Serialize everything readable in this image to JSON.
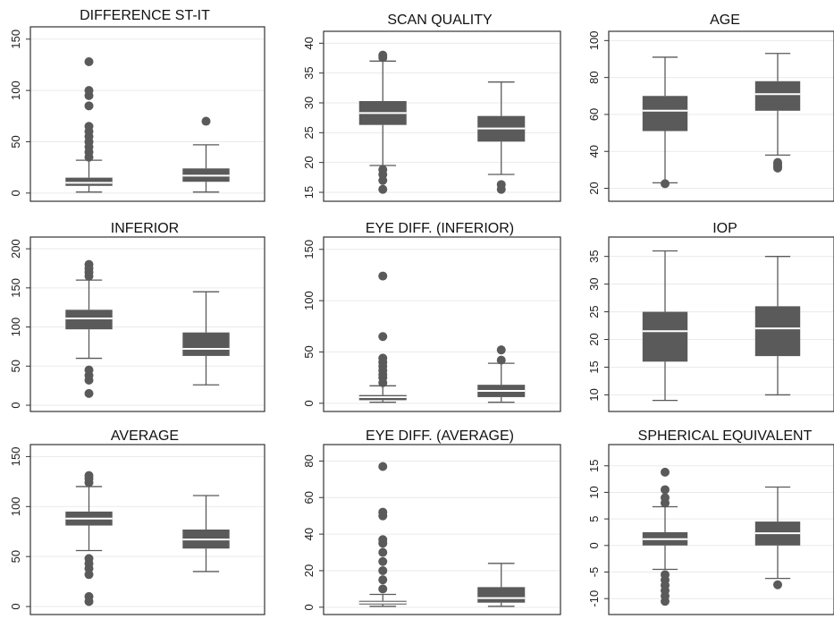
{
  "style": {
    "box_fill": "#5a5a5a",
    "median_line": "#ffffff",
    "whisker": "#5a5a5a",
    "outlier": "#5a5a5a",
    "frame": "#333333",
    "grid": "#eaeaea"
  },
  "chart_data": [
    {
      "type": "boxplot",
      "title": "DIFFERENCE ST-IT",
      "ylim": [
        -8,
        162
      ],
      "yticks": [
        0,
        50,
        100,
        150
      ],
      "ytick_labels": [
        "0",
        "50",
        "100",
        "150"
      ],
      "grid": true,
      "boxes": [
        {
          "whisker_low": 1,
          "q1": 7,
          "median": 10,
          "q3": 15,
          "whisker_high": 32,
          "outliers": [
            35,
            40,
            45,
            50,
            55,
            60,
            65,
            85,
            95,
            100,
            128
          ]
        },
        {
          "whisker_low": 1,
          "q1": 11,
          "median": 17,
          "q3": 24,
          "whisker_high": 47,
          "outliers": [
            70
          ]
        }
      ]
    },
    {
      "type": "boxplot",
      "title": "SCAN QUALITY",
      "ylim": [
        13.5,
        42
      ],
      "yticks": [
        15,
        20,
        25,
        30,
        35,
        40
      ],
      "ytick_labels": [
        "15",
        "20",
        "25",
        "30",
        "35",
        "40"
      ],
      "grid": true,
      "boxes": [
        {
          "whisker_low": 19.5,
          "q1": 26.3,
          "median": 28.3,
          "q3": 30.3,
          "whisker_high": 37,
          "outliers": [
            15.5,
            17,
            18,
            18.8,
            37.6,
            38
          ]
        },
        {
          "whisker_low": 18,
          "q1": 23.5,
          "median": 25.7,
          "q3": 27.8,
          "whisker_high": 33.5,
          "outliers": [
            15.5,
            16.3
          ]
        }
      ]
    },
    {
      "type": "boxplot",
      "title": "AGE",
      "ylim": [
        13,
        105
      ],
      "yticks": [
        20,
        40,
        60,
        80,
        100
      ],
      "ytick_labels": [
        "20",
        "40",
        "60",
        "80",
        "100"
      ],
      "grid": true,
      "boxes": [
        {
          "whisker_low": 23,
          "q1": 51,
          "median": 62,
          "q3": 70,
          "whisker_high": 91,
          "outliers": [
            22.5
          ]
        },
        {
          "whisker_low": 38,
          "q1": 62,
          "median": 71,
          "q3": 78,
          "whisker_high": 93,
          "outliers": [
            31,
            32,
            33,
            34
          ]
        }
      ]
    },
    {
      "type": "boxplot",
      "title": "INFERIOR",
      "ylim": [
        -8,
        215
      ],
      "yticks": [
        0,
        50,
        100,
        150,
        200
      ],
      "ytick_labels": [
        "0",
        "50",
        "100",
        "150",
        "200"
      ],
      "grid": true,
      "boxes": [
        {
          "whisker_low": 60,
          "q1": 97,
          "median": 111,
          "q3": 122,
          "whisker_high": 160,
          "outliers": [
            15,
            32,
            38,
            45,
            165,
            170,
            175,
            180
          ]
        },
        {
          "whisker_low": 26,
          "q1": 63,
          "median": 72,
          "q3": 93,
          "whisker_high": 145,
          "outliers": []
        }
      ]
    },
    {
      "type": "boxplot",
      "title": "EYE DIFF. (INFERIOR)",
      "ylim": [
        -8,
        162
      ],
      "yticks": [
        0,
        50,
        100,
        150
      ],
      "ytick_labels": [
        "0",
        "50",
        "100",
        "150"
      ],
      "grid": true,
      "boxes": [
        {
          "whisker_low": 1,
          "q1": 3,
          "median": 6,
          "q3": 8,
          "whisker_high": 17,
          "outliers": [
            20,
            25,
            28,
            32,
            36,
            40,
            44,
            65,
            124
          ]
        },
        {
          "whisker_low": 1,
          "q1": 6,
          "median": 12,
          "q3": 18,
          "whisker_high": 39,
          "outliers": [
            42,
            52
          ]
        }
      ]
    },
    {
      "type": "boxplot",
      "title": "IOP",
      "ylim": [
        7,
        38.5
      ],
      "yticks": [
        10,
        15,
        20,
        25,
        30,
        35
      ],
      "ytick_labels": [
        "10",
        "15",
        "20",
        "25",
        "30",
        "35"
      ],
      "grid": true,
      "boxes": [
        {
          "whisker_low": 9,
          "q1": 16,
          "median": 21.5,
          "q3": 25,
          "whisker_high": 36,
          "outliers": []
        },
        {
          "whisker_low": 10,
          "q1": 17,
          "median": 22,
          "q3": 26,
          "whisker_high": 35,
          "outliers": []
        }
      ]
    },
    {
      "type": "boxplot",
      "title": "AVERAGE",
      "ylim": [
        -8,
        162
      ],
      "yticks": [
        0,
        50,
        100,
        150
      ],
      "ytick_labels": [
        "0",
        "50",
        "100",
        "150"
      ],
      "grid": true,
      "boxes": [
        {
          "whisker_low": 56,
          "q1": 81,
          "median": 88,
          "q3": 95,
          "whisker_high": 120,
          "outliers": [
            5,
            10,
            32,
            38,
            43,
            48,
            124,
            128,
            131
          ]
        },
        {
          "whisker_low": 35,
          "q1": 58,
          "median": 67,
          "q3": 77,
          "whisker_high": 111,
          "outliers": []
        }
      ]
    },
    {
      "type": "boxplot",
      "title": "EYE DIFF. (AVERAGE)",
      "ylim": [
        -4,
        89
      ],
      "yticks": [
        0,
        20,
        40,
        60,
        80
      ],
      "ytick_labels": [
        "0",
        "20",
        "40",
        "60",
        "80"
      ],
      "grid": true,
      "boxes": [
        {
          "whisker_low": 0.5,
          "q1": 1.5,
          "median": 2.5,
          "q3": 3.5,
          "whisker_high": 7,
          "outliers": [
            10,
            15,
            20,
            25,
            30,
            35,
            37,
            50,
            52,
            77
          ]
        },
        {
          "whisker_low": 0.5,
          "q1": 2.5,
          "median": 5,
          "q3": 11,
          "whisker_high": 24,
          "outliers": []
        }
      ]
    },
    {
      "type": "boxplot",
      "title": "SPHERICAL EQUIVALENT",
      "ylim": [
        -13,
        19
      ],
      "yticks": [
        -10,
        -5,
        0,
        5,
        10,
        15
      ],
      "ytick_labels": [
        "-10",
        "-5",
        "0",
        "5",
        "10",
        "15"
      ],
      "grid": true,
      "boxes": [
        {
          "whisker_low": -4.5,
          "q1": 0,
          "median": 1.2,
          "q3": 2.5,
          "whisker_high": 7.3,
          "outliers": [
            -10.5,
            -9.5,
            -8.5,
            -7.5,
            -6.5,
            -5.5,
            8,
            9,
            10.5,
            13.8
          ]
        },
        {
          "whisker_low": -6.2,
          "q1": 0,
          "median": 2.3,
          "q3": 4.5,
          "whisker_high": 11,
          "outliers": [
            -7.4
          ]
        }
      ]
    }
  ]
}
